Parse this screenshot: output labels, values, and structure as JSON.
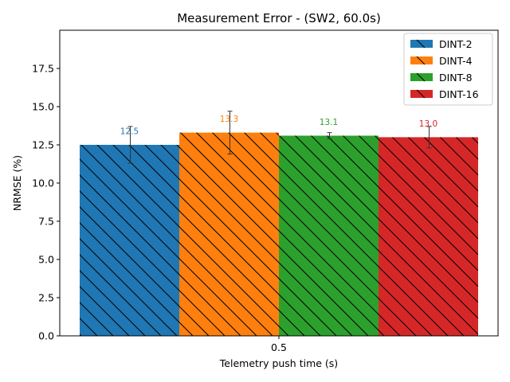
{
  "chart_data": {
    "type": "bar",
    "title": "Measurement Error - (SW2, 60.0s)",
    "xlabel": "Telemetry push time (s)",
    "ylabel": "NRMSE (%)",
    "categories": [
      "0.5"
    ],
    "ylim": [
      0,
      20
    ],
    "yticks": [
      "0.0",
      "2.5",
      "5.0",
      "7.5",
      "10.0",
      "12.5",
      "15.0",
      "17.5"
    ],
    "grid": false,
    "legend_position": "top-right",
    "hatch": "diagonal",
    "series": [
      {
        "name": "DINT-2",
        "values": [
          12.5
        ],
        "error": [
          1.2
        ],
        "label": "12.5",
        "color": "#1f77b4"
      },
      {
        "name": "DINT-4",
        "values": [
          13.3
        ],
        "error": [
          1.4
        ],
        "label": "13.3",
        "color": "#ff7f0e"
      },
      {
        "name": "DINT-8",
        "values": [
          13.1
        ],
        "error": [
          0.2
        ],
        "label": "13.1",
        "color": "#2ca02c"
      },
      {
        "name": "DINT-16",
        "values": [
          13.0
        ],
        "error": [
          0.7
        ],
        "label": "13.0",
        "color": "#d62728"
      }
    ]
  }
}
